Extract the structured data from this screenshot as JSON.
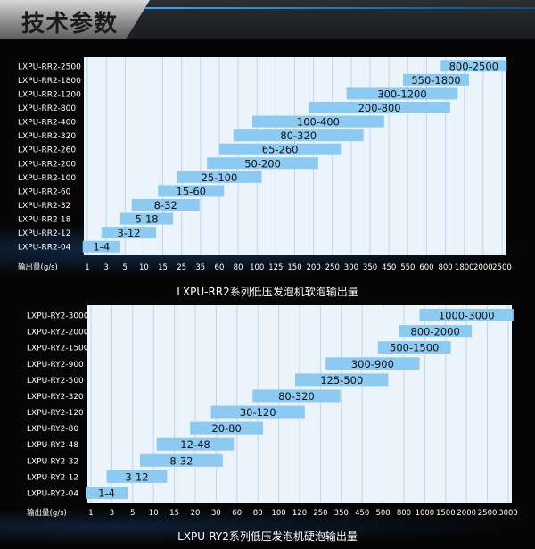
{
  "page": {
    "title": "技术参数"
  },
  "colors": {
    "grid_bg": "#ecf4fb",
    "grid_line": "#bcd6ee",
    "bar": "#8ccaf1",
    "bar_text": "#111111",
    "label_text": "#ffffff",
    "tick_text": "#ffffff"
  },
  "chart_data": [
    {
      "type": "bar",
      "orientation": "horizontal-range",
      "title": "LXPU-RR2系列低压发泡机软泡输出量",
      "xlabel": "输出量(g/s)",
      "x_ticks": [
        "1",
        "3",
        "5",
        "10",
        "15",
        "25",
        "35",
        "60",
        "80",
        "100",
        "125",
        "150",
        "200",
        "250",
        "300",
        "350",
        "450",
        "550",
        "600",
        "800",
        "1800",
        "2000",
        "2500"
      ],
      "categories": [
        "LXPU-RR2-2500",
        "LXPU-RR2-1800",
        "LXPU-RR2-1200",
        "LXPU-RR2-800",
        "LXPU-RR2-400",
        "LXPU-RR2-320",
        "LXPU-RR2-260",
        "LXPU-RR2-200",
        "LXPU-RR2-100",
        "LXPU-RR2-60",
        "LXPU-RR2-32",
        "LXPU-RR2-18",
        "LXPU-RR2-12",
        "LXPU-RR2-04"
      ],
      "ranges": [
        [
          800,
          2500
        ],
        [
          550,
          1800
        ],
        [
          300,
          1200
        ],
        [
          200,
          800
        ],
        [
          100,
          400
        ],
        [
          80,
          320
        ],
        [
          65,
          260
        ],
        [
          50,
          200
        ],
        [
          25,
          100
        ],
        [
          15,
          60
        ],
        [
          8,
          32
        ],
        [
          5,
          18
        ],
        [
          3,
          12
        ],
        [
          1,
          4
        ]
      ],
      "labels": [
        "800-2500",
        "550-1800",
        "300-1200",
        "200-800",
        "100-400",
        "80-320",
        "65-260",
        "50-200",
        "25-100",
        "15-60",
        "8-32",
        "5-18",
        "3-12",
        "1-4"
      ],
      "grid": true
    },
    {
      "type": "bar",
      "orientation": "horizontal-range",
      "title": "LXPU-RY2系列低压发泡机硬泡输出量",
      "xlabel": "输出量(g/s)",
      "x_ticks": [
        "1",
        "3",
        "5",
        "10",
        "15",
        "20",
        "30",
        "60",
        "80",
        "100",
        "120",
        "250",
        "350",
        "450",
        "500",
        "800",
        "1000",
        "1500",
        "2000",
        "2500",
        "3000"
      ],
      "categories": [
        "LXPU-RY2-3000",
        "LXPU-RY2-2000",
        "LXPU-RY2-1500",
        "LXPU-RY2-900",
        "LXPU-RY2-500",
        "LXPU-RY2-320",
        "LXPU-RY2-120",
        "LXPU-RY2-80",
        "LXPU-RY2-48",
        "LXPU-RY2-32",
        "LXPU-RY2-12",
        "LXPU-RY2-04"
      ],
      "ranges": [
        [
          1000,
          3000
        ],
        [
          800,
          2000
        ],
        [
          500,
          1500
        ],
        [
          300,
          900
        ],
        [
          125,
          500
        ],
        [
          80,
          320
        ],
        [
          30,
          120
        ],
        [
          20,
          80
        ],
        [
          12,
          48
        ],
        [
          8,
          32
        ],
        [
          3,
          12
        ],
        [
          1,
          4
        ]
      ],
      "labels": [
        "1000-3000",
        "800-2000",
        "500-1500",
        "300-900",
        "125-500",
        "80-320",
        "30-120",
        "20-80",
        "12-48",
        "8-32",
        "3-12",
        "1-4"
      ],
      "grid": true
    }
  ]
}
